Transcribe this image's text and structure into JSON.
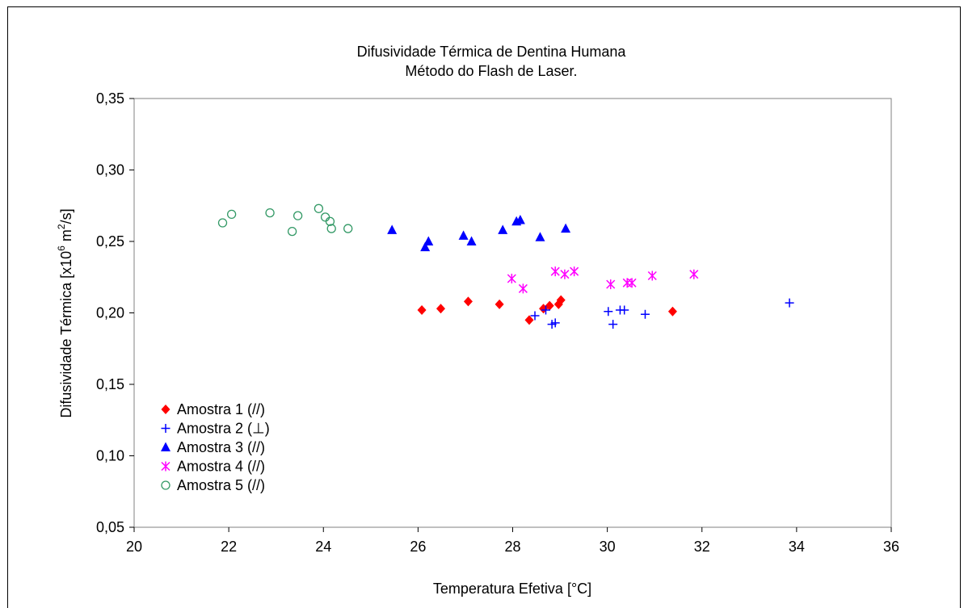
{
  "chart_data": {
    "type": "scatter",
    "title": [
      "Difusividade Térmica de Dentina Humana",
      "Método do Flash de Laser."
    ],
    "xlabel": "Temperatura Efetiva [°C]",
    "ylabel": {
      "main": "Difusividade Térmica [x10",
      "sup1": "6",
      "mid": " m",
      "sup2": "2",
      "end": "/s]"
    },
    "xlim": [
      20,
      36
    ],
    "ylim": [
      0.05,
      0.35
    ],
    "xticks": [
      "20",
      "22",
      "24",
      "26",
      "28",
      "30",
      "32",
      "34",
      "36"
    ],
    "yticks": [
      "0,05",
      "0,10",
      "0,15",
      "0,20",
      "0,25",
      "0,30",
      "0,35"
    ],
    "grid": false,
    "legend_position": "bottom-left",
    "series": [
      {
        "name": "Amostra 1 (//)",
        "marker": "diamond",
        "color": "#ff0000",
        "points": [
          [
            26.08,
            0.202
          ],
          [
            26.48,
            0.203
          ],
          [
            27.06,
            0.208
          ],
          [
            27.72,
            0.206
          ],
          [
            28.35,
            0.195
          ],
          [
            28.65,
            0.203
          ],
          [
            28.78,
            0.205
          ],
          [
            28.97,
            0.206
          ],
          [
            29.02,
            0.209
          ],
          [
            31.38,
            0.201
          ]
        ]
      },
      {
        "name": "Amostra 2 (⊥)",
        "marker": "plus",
        "color": "#0000ff",
        "points": [
          [
            28.47,
            0.198
          ],
          [
            28.7,
            0.202
          ],
          [
            28.83,
            0.192
          ],
          [
            28.9,
            0.193
          ],
          [
            30.02,
            0.201
          ],
          [
            30.12,
            0.192
          ],
          [
            30.27,
            0.202
          ],
          [
            30.36,
            0.202
          ],
          [
            30.8,
            0.199
          ],
          [
            33.85,
            0.207
          ]
        ]
      },
      {
        "name": "Amostra 3 (//)",
        "marker": "triangle",
        "color": "#0000ff",
        "points": [
          [
            25.45,
            0.258
          ],
          [
            26.15,
            0.246
          ],
          [
            26.22,
            0.25
          ],
          [
            26.96,
            0.254
          ],
          [
            27.13,
            0.25
          ],
          [
            27.79,
            0.258
          ],
          [
            28.08,
            0.264
          ],
          [
            28.16,
            0.265
          ],
          [
            28.58,
            0.253
          ],
          [
            29.12,
            0.259
          ]
        ]
      },
      {
        "name": "Amostra 4 (//)",
        "marker": "asterisk",
        "color": "#ff00ff",
        "points": [
          [
            27.98,
            0.224
          ],
          [
            28.22,
            0.217
          ],
          [
            28.9,
            0.229
          ],
          [
            29.1,
            0.227
          ],
          [
            29.3,
            0.229
          ],
          [
            30.07,
            0.22
          ],
          [
            30.42,
            0.221
          ],
          [
            30.52,
            0.221
          ],
          [
            30.95,
            0.226
          ],
          [
            31.83,
            0.227
          ]
        ]
      },
      {
        "name": "Amostra 5 (//)",
        "marker": "circle",
        "color": "#339966",
        "points": [
          [
            21.87,
            0.263
          ],
          [
            22.06,
            0.269
          ],
          [
            22.87,
            0.27
          ],
          [
            23.34,
            0.257
          ],
          [
            23.46,
            0.268
          ],
          [
            23.9,
            0.273
          ],
          [
            24.04,
            0.267
          ],
          [
            24.14,
            0.264
          ],
          [
            24.17,
            0.259
          ],
          [
            24.52,
            0.259
          ]
        ]
      }
    ]
  }
}
